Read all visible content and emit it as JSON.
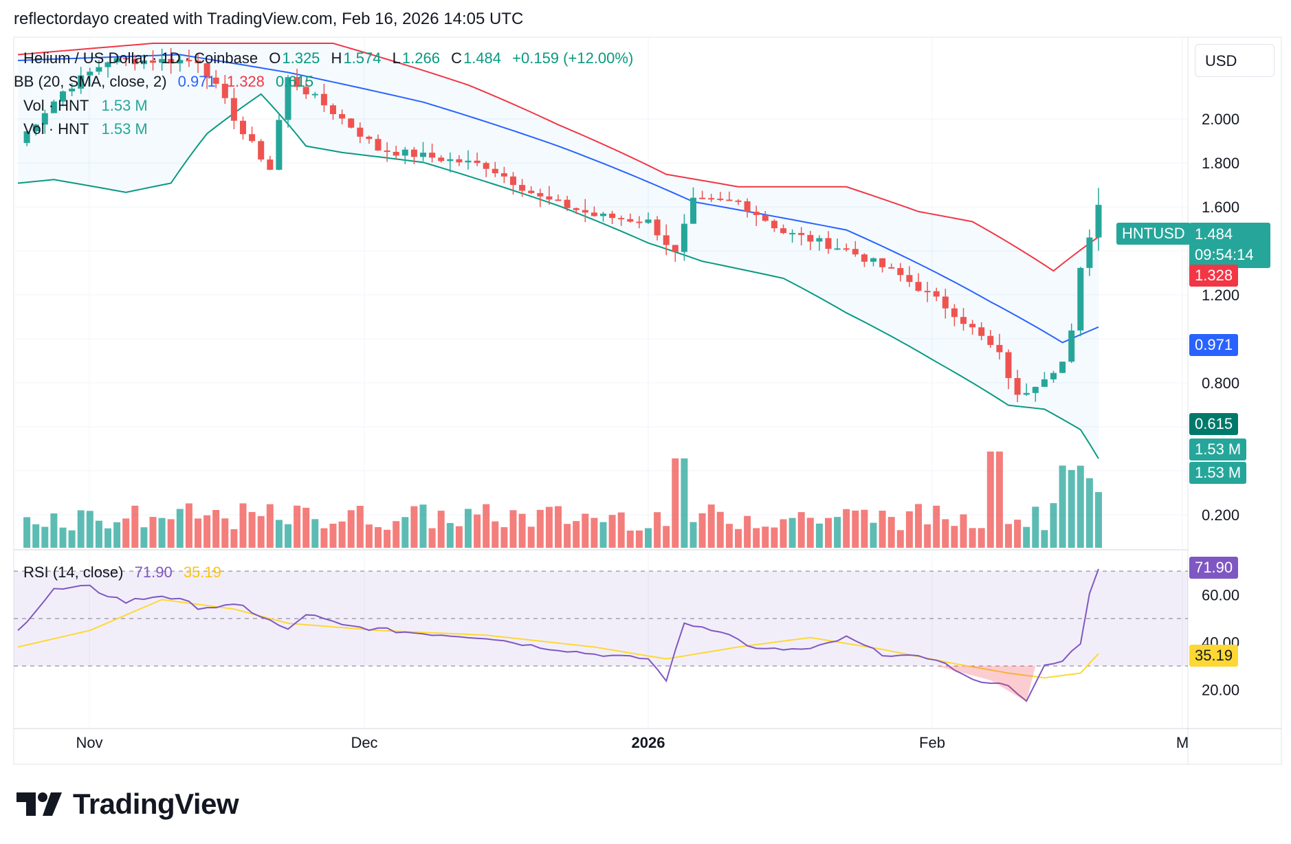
{
  "header": {
    "text": "reflectordayo created with TradingView.com, Feb 16, 2026 14:05 UTC"
  },
  "legend": {
    "symbol": "Helium / US Dollar · 1D · Coinbase",
    "o_label": "O",
    "o_value": "1.325",
    "h_label": "H",
    "h_value": "1.574",
    "l_label": "L",
    "l_value": "1.266",
    "c_label": "C",
    "c_value": "1.484",
    "change": "+0.159 (+12.00%)",
    "bb_label": "BB (20, SMA, close, 2)",
    "bb_basis": "0.971",
    "bb_upper": "1.328",
    "bb_lower": "0.615",
    "vol1_label": "Vol · HNT",
    "vol1_value": "1.53 M",
    "vol2_label": "Vol · HNT",
    "vol2_value": "1.53 M",
    "rsi_label": "RSI (14, close)",
    "rsi_value": "71.90",
    "rsi_ma": "35.19"
  },
  "currency": "USD",
  "price_badges": {
    "ticker": "HNTUSD",
    "last": "1.484",
    "countdown": "09:54:14",
    "bb_upper": "1.328",
    "bb_basis": "0.971",
    "bb_lower": "0.615",
    "vol_a": "1.53 M",
    "vol_b": "1.53 M",
    "rsi": "71.90",
    "rsi_ma": "35.19"
  },
  "brand": {
    "name": "TradingView"
  },
  "colors": {
    "up": "#26a69a",
    "down": "#ef5350",
    "basis": "#2962ff",
    "upper": "#f23645",
    "lower": "#089981",
    "rsi": "#7e57c2",
    "rsi_ma": "#fdd835"
  },
  "chart_data": [
    {
      "type": "candlestick",
      "title": "Helium / US Dollar · 1D · Coinbase",
      "y_ticks": [
        "2.000",
        "1.800",
        "1.600",
        "1.200",
        "0.800",
        "0.200"
      ],
      "x_ticks": [
        "Nov",
        "Dec",
        "2026",
        "Feb",
        "M"
      ],
      "ylim": [
        0.0,
        2.5
      ],
      "scale": "log",
      "overlays": [
        "Bollinger Bands (20, SMA, close, 2)",
        "Volume"
      ],
      "candles_sampled": [
        {
          "date": "Oct 21",
          "o": 1.86,
          "h": 1.9,
          "l": 1.8,
          "c": 1.84
        },
        {
          "date": "Oct 27",
          "o": 2.3,
          "h": 2.35,
          "l": 2.1,
          "c": 2.2
        },
        {
          "date": "Nov 10",
          "o": 2.4,
          "h": 2.5,
          "l": 2.3,
          "c": 2.45
        },
        {
          "date": "Nov 18",
          "o": 2.05,
          "h": 2.1,
          "l": 1.85,
          "c": 1.92
        },
        {
          "date": "Nov 20",
          "o": 1.72,
          "h": 1.78,
          "l": 1.62,
          "c": 1.68
        },
        {
          "date": "Nov 22",
          "o": 1.7,
          "h": 2.45,
          "l": 1.68,
          "c": 2.3
        },
        {
          "date": "Dec 1",
          "o": 1.95,
          "h": 2.0,
          "l": 1.65,
          "c": 1.75
        },
        {
          "date": "Dec 15",
          "o": 1.8,
          "h": 1.83,
          "l": 1.72,
          "c": 1.75
        },
        {
          "date": "Dec 25",
          "o": 1.42,
          "h": 1.45,
          "l": 1.38,
          "c": 1.4
        },
        {
          "date": "Dec 31",
          "o": 1.37,
          "h": 1.39,
          "l": 1.22,
          "c": 1.25
        },
        {
          "date": "Jan 1",
          "o": 1.26,
          "h": 1.5,
          "l": 1.23,
          "c": 1.45
        },
        {
          "date": "Jan 2",
          "o": 1.45,
          "h": 1.6,
          "l": 1.43,
          "c": 1.53
        },
        {
          "date": "Jan 15",
          "o": 1.28,
          "h": 1.31,
          "l": 1.22,
          "c": 1.24
        },
        {
          "date": "Jan 25",
          "o": 1.12,
          "h": 1.14,
          "l": 1.08,
          "c": 1.1
        },
        {
          "date": "Feb 4",
          "o": 0.88,
          "h": 0.92,
          "l": 0.82,
          "c": 0.84
        },
        {
          "date": "Feb 5",
          "o": 0.8,
          "h": 0.9,
          "l": 0.74,
          "c": 0.76
        },
        {
          "date": "Feb 13",
          "o": 0.87,
          "h": 0.98,
          "l": 0.86,
          "c": 0.95
        },
        {
          "date": "Feb 14",
          "o": 0.95,
          "h": 1.2,
          "l": 0.94,
          "c": 1.18
        },
        {
          "date": "Feb 15",
          "o": 1.12,
          "h": 1.35,
          "l": 1.1,
          "c": 1.325
        },
        {
          "date": "Feb 16",
          "o": 1.325,
          "h": 1.574,
          "l": 1.266,
          "c": 1.484
        }
      ],
      "bollinger_last": {
        "basis": 0.971,
        "upper": 1.328,
        "lower": 0.615
      },
      "volume_last": "1.53 M"
    },
    {
      "type": "line",
      "title": "RSI (14, close)",
      "y_ticks": [
        "60.00",
        "40.00",
        "20.00"
      ],
      "ylim": [
        10,
        80
      ],
      "bands": [
        30,
        50,
        70
      ],
      "series": [
        {
          "name": "RSI",
          "last": 71.9
        },
        {
          "name": "RSI MA",
          "last": 35.19
        }
      ]
    }
  ]
}
